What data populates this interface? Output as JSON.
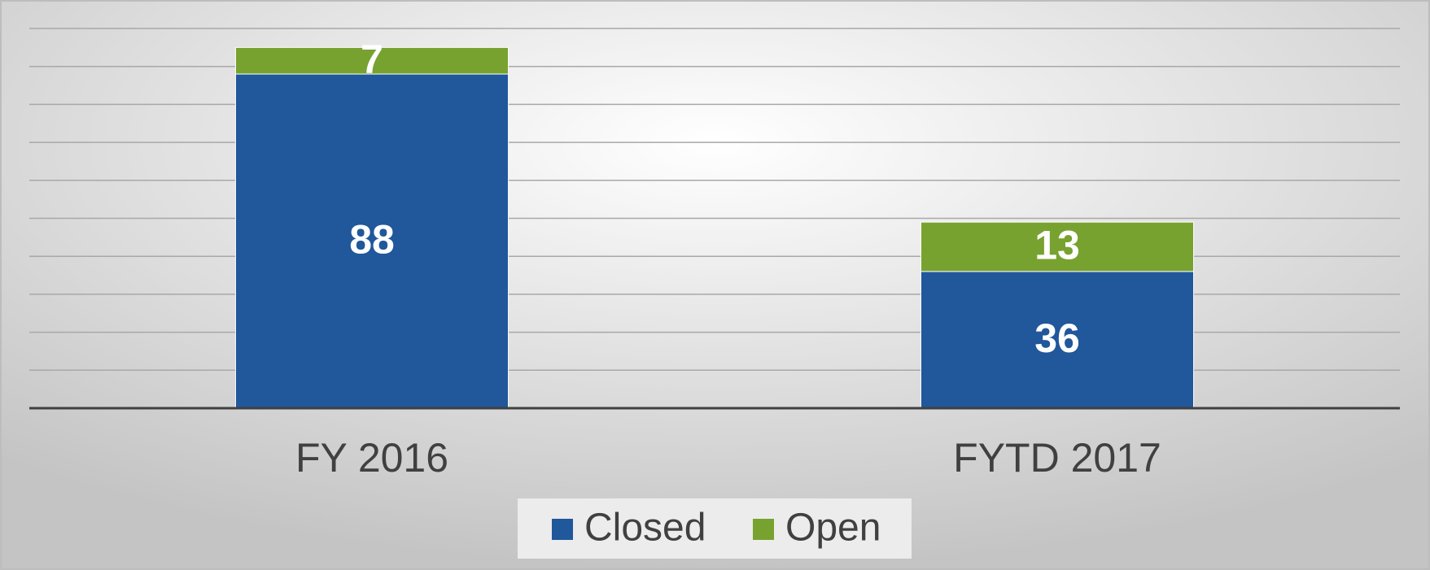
{
  "chart_data": {
    "type": "stacked_bar",
    "categories": [
      "FY 2016",
      "FYTD 2017"
    ],
    "series": [
      {
        "name": "Closed",
        "color": "#21579b",
        "values": [
          88,
          36
        ]
      },
      {
        "name": "Open",
        "color": "#78a22f",
        "values": [
          7,
          13
        ]
      }
    ],
    "ylim": [
      0,
      100
    ],
    "yticks": [
      0,
      10,
      20,
      30,
      40,
      50,
      60,
      70,
      80,
      90,
      100
    ],
    "grid": true,
    "legend": "bottom"
  }
}
